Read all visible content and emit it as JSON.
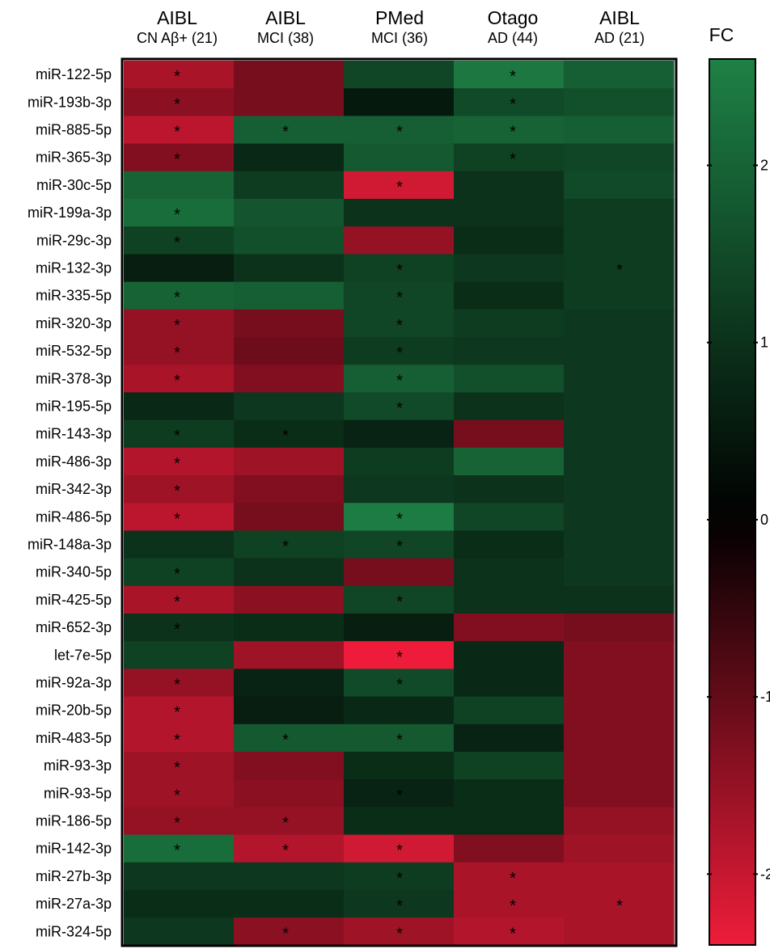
{
  "chart_data": {
    "type": "heatmap",
    "legend_title": "FC",
    "columns": [
      {
        "line1": "AIBL",
        "line2": "CN Aβ+ (21)"
      },
      {
        "line1": "AIBL",
        "line2": "MCI (38)"
      },
      {
        "line1": "PMed",
        "line2": "MCI (36)"
      },
      {
        "line1": "Otago",
        "line2": "AD (44)"
      },
      {
        "line1": "AIBL",
        "line2": "AD (21)"
      }
    ],
    "rows": [
      "miR-122-5p",
      "miR-193b-3p",
      "miR-885-5p",
      "miR-365-3p",
      "miR-30c-5p",
      "miR-199a-3p",
      "miR-29c-3p",
      "miR-132-3p",
      "miR-335-5p",
      "miR-320-3p",
      "miR-532-5p",
      "miR-378-3p",
      "miR-195-5p",
      "miR-143-3p",
      "miR-486-3p",
      "miR-342-3p",
      "miR-486-5p",
      "miR-148a-3p",
      "miR-340-5p",
      "miR-425-5p",
      "miR-652-3p",
      "let-7e-5p",
      "miR-92a-3p",
      "miR-20b-5p",
      "miR-483-5p",
      "miR-93-3p",
      "miR-93-5p",
      "miR-186-5p",
      "miR-142-3p",
      "miR-27b-3p",
      "miR-27a-3p",
      "miR-324-5p"
    ],
    "values": [
      [
        -1.7,
        -1.2,
        1.4,
        2.4,
        1.9
      ],
      [
        -1.4,
        -1.2,
        0.5,
        1.5,
        1.6
      ],
      [
        -1.9,
        1.9,
        1.9,
        2.0,
        1.9
      ],
      [
        -1.3,
        0.8,
        1.8,
        1.3,
        1.4
      ],
      [
        2.0,
        1.2,
        -2.1,
        1.0,
        1.5
      ],
      [
        2.2,
        1.7,
        1.0,
        1.0,
        1.2
      ],
      [
        1.3,
        1.6,
        -1.5,
        0.9,
        1.2
      ],
      [
        0.6,
        1.0,
        1.3,
        1.1,
        1.2
      ],
      [
        2.0,
        1.9,
        1.4,
        0.9,
        1.2
      ],
      [
        -1.5,
        -1.2,
        1.4,
        1.2,
        1.1
      ],
      [
        -1.5,
        -1.1,
        1.2,
        1.1,
        1.1
      ],
      [
        -1.7,
        -1.3,
        1.9,
        1.6,
        1.1
      ],
      [
        0.8,
        1.1,
        1.5,
        1.0,
        1.1
      ],
      [
        1.2,
        0.9,
        0.7,
        -1.2,
        1.1
      ],
      [
        -1.8,
        -1.6,
        1.2,
        2.0,
        1.1
      ],
      [
        -1.6,
        -1.3,
        1.1,
        1.0,
        1.1
      ],
      [
        -1.9,
        -1.2,
        2.5,
        1.4,
        1.1
      ],
      [
        1.0,
        1.3,
        1.4,
        0.9,
        1.1
      ],
      [
        1.3,
        1.0,
        -1.2,
        1.0,
        1.1
      ],
      [
        -1.7,
        -1.4,
        1.4,
        1.0,
        1.0
      ],
      [
        1.0,
        0.9,
        0.6,
        -1.3,
        -1.2
      ],
      [
        1.3,
        -1.6,
        -2.4,
        0.8,
        -1.3
      ],
      [
        -1.5,
        0.7,
        1.5,
        0.8,
        -1.3
      ],
      [
        -1.8,
        0.6,
        0.8,
        1.3,
        -1.3
      ],
      [
        -1.8,
        1.8,
        1.8,
        0.7,
        -1.3
      ],
      [
        -1.6,
        -1.3,
        0.9,
        1.3,
        -1.3
      ],
      [
        -1.6,
        -1.4,
        0.7,
        0.9,
        -1.3
      ],
      [
        -1.5,
        -1.5,
        0.9,
        0.9,
        -1.5
      ],
      [
        2.2,
        -1.8,
        -2.1,
        -1.3,
        -1.6
      ],
      [
        1.1,
        1.1,
        1.2,
        -1.7,
        -1.7
      ],
      [
        0.9,
        0.9,
        1.1,
        -1.7,
        -1.7
      ],
      [
        1.1,
        -1.4,
        -1.6,
        -1.8,
        -1.7
      ]
    ],
    "significant": [
      [
        0,
        0
      ],
      [
        0,
        3
      ],
      [
        1,
        0
      ],
      [
        1,
        3
      ],
      [
        2,
        0
      ],
      [
        2,
        1
      ],
      [
        2,
        2
      ],
      [
        2,
        3
      ],
      [
        3,
        0
      ],
      [
        3,
        3
      ],
      [
        4,
        2
      ],
      [
        5,
        0
      ],
      [
        6,
        0
      ],
      [
        7,
        2
      ],
      [
        7,
        4
      ],
      [
        8,
        0
      ],
      [
        8,
        2
      ],
      [
        9,
        0
      ],
      [
        9,
        2
      ],
      [
        10,
        0
      ],
      [
        10,
        2
      ],
      [
        11,
        0
      ],
      [
        11,
        2
      ],
      [
        12,
        2
      ],
      [
        13,
        0
      ],
      [
        13,
        1
      ],
      [
        14,
        0
      ],
      [
        15,
        0
      ],
      [
        16,
        0
      ],
      [
        16,
        2
      ],
      [
        17,
        1
      ],
      [
        17,
        2
      ],
      [
        18,
        0
      ],
      [
        19,
        0
      ],
      [
        19,
        2
      ],
      [
        20,
        0
      ],
      [
        21,
        2
      ],
      [
        22,
        0
      ],
      [
        22,
        2
      ],
      [
        23,
        0
      ],
      [
        24,
        0
      ],
      [
        24,
        1
      ],
      [
        24,
        2
      ],
      [
        25,
        0
      ],
      [
        26,
        0
      ],
      [
        26,
        2
      ],
      [
        27,
        0
      ],
      [
        27,
        1
      ],
      [
        28,
        0
      ],
      [
        28,
        1
      ],
      [
        28,
        2
      ],
      [
        29,
        2
      ],
      [
        29,
        3
      ],
      [
        30,
        2
      ],
      [
        30,
        3
      ],
      [
        30,
        4
      ],
      [
        31,
        1
      ],
      [
        31,
        2
      ],
      [
        31,
        3
      ]
    ],
    "significance_marker": "*",
    "color_scale": {
      "low": "#ee1c3a",
      "mid": "#000000",
      "high": "#1e8146"
    },
    "colorbar_range": [
      -2.4,
      2.6
    ],
    "colorbar_ticks": [
      {
        "value": 2,
        "label": "2"
      },
      {
        "value": 1,
        "label": "1"
      },
      {
        "value": 0,
        "label": "0"
      },
      {
        "value": -1,
        "label": "-1"
      },
      {
        "value": -2,
        "label": "-2"
      }
    ]
  }
}
